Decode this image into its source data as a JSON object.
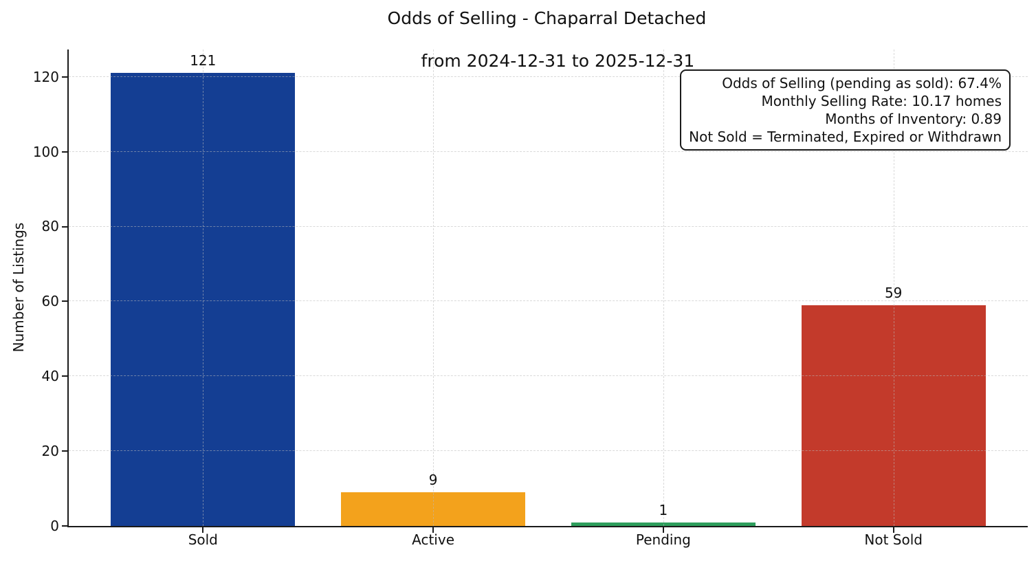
{
  "title": {
    "line1": "Odds of Selling - Chaparral Detached",
    "line2": "from 2024-12-31 to 2025-12-31"
  },
  "chart_data": {
    "type": "bar",
    "title": "Odds of Selling - Chaparral Detached\nfrom 2024-12-31 to 2025-12-31",
    "categories": [
      "Sold",
      "Active",
      "Pending",
      "Not Sold"
    ],
    "values": [
      121,
      9,
      1,
      59
    ],
    "bar_colors": [
      "#143e93",
      "#f3a21c",
      "#2e9e5c",
      "#c33a2b"
    ],
    "xlabel": "",
    "ylabel": "Number of Listings",
    "ylim": [
      0,
      127.3
    ],
    "yticks": [
      0,
      20,
      40,
      60,
      80,
      100,
      120
    ],
    "grid": "dashed, horizontal and vertical, drawn over bars",
    "legend": "none",
    "value_labels_shown": true
  },
  "annotation": {
    "lines": [
      "Odds of Selling (pending as sold): 67.4%",
      "Monthly Selling Rate: 10.17 homes",
      "Months of Inventory: 0.89",
      "Not Sold = Terminated, Expired or Withdrawn"
    ]
  },
  "colors": {
    "background": "#ffffff",
    "axis": "#1a1a1a",
    "text": "#111111",
    "grid": "#b9b9b9",
    "sold": "#143e93",
    "active": "#f3a21c",
    "pending": "#2e9e5c",
    "not_sold": "#c33a2b"
  }
}
